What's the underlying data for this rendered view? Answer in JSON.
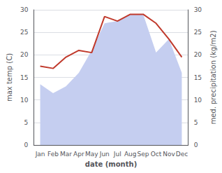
{
  "chart_data": {
    "type": "line",
    "xlabel": "date (month)",
    "ylabel": "max temp (C)",
    "y2label": "med. precipitation (kg/m2)",
    "categories": [
      "Jan",
      "Feb",
      "Mar",
      "Apr",
      "May",
      "Jun",
      "Jul",
      "Aug",
      "Sep",
      "Oct",
      "Nov",
      "Dec"
    ],
    "series": [
      {
        "type": "area",
        "axis": "y2",
        "color": "#c5cef0",
        "values": [
          13.5,
          11.5,
          13.0,
          16.0,
          21.0,
          27.0,
          27.5,
          29.0,
          29.0,
          20.5,
          23.5,
          16.0
        ]
      },
      {
        "type": "line",
        "color": "#c0392b",
        "values": [
          17.5,
          17.0,
          19.5,
          21.0,
          20.5,
          28.5,
          27.5,
          29.0,
          29.0,
          27.0,
          23.5,
          19.5
        ]
      }
    ],
    "ylim": [
      0,
      30
    ],
    "yticks": [
      0,
      5,
      10,
      15,
      20,
      25,
      30
    ],
    "y2lim": [
      0,
      30
    ],
    "y2ticks": [
      0,
      5,
      10,
      15,
      20,
      25,
      30
    ],
    "grid": true
  }
}
